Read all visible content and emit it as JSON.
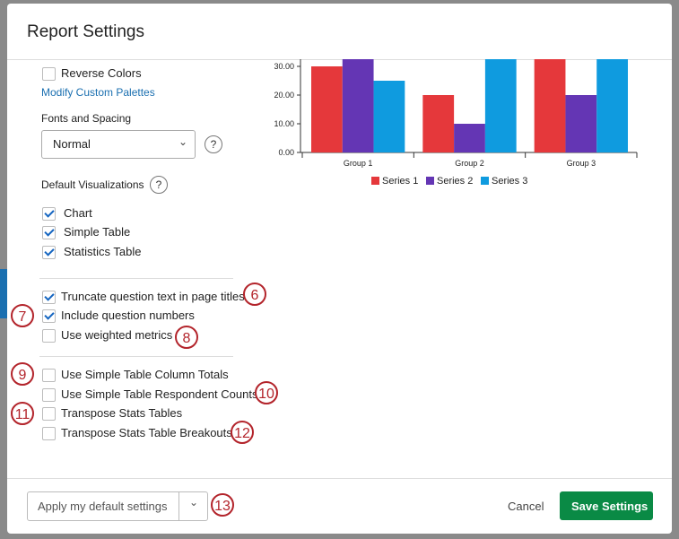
{
  "header": {
    "title": "Report Settings"
  },
  "settings": {
    "reverse_colors": {
      "label": "Reverse Colors",
      "checked": false
    },
    "modify_link": "Modify Custom Palettes",
    "fonts_label": "Fonts and Spacing",
    "fonts_value": "Normal",
    "fonts_help": "?",
    "vis_label": "Default Visualizations",
    "vis_help": "?",
    "visualizations": [
      {
        "label": "Chart",
        "checked": true
      },
      {
        "label": "Simple Table",
        "checked": true
      },
      {
        "label": "Statistics Table",
        "checked": true
      }
    ],
    "options": [
      {
        "label": "Truncate question text in page titles",
        "checked": true,
        "callout": "6"
      },
      {
        "label": "Include question numbers",
        "checked": true,
        "callout": "7"
      },
      {
        "label": "Use weighted metrics",
        "checked": false,
        "callout": "8"
      }
    ],
    "table_options": [
      {
        "label": "Use Simple Table Column Totals",
        "checked": false,
        "callout": "9"
      },
      {
        "label": "Use Simple Table Respondent Counts",
        "checked": false,
        "callout": "10"
      },
      {
        "label": "Transpose Stats Tables",
        "checked": false,
        "callout": "11"
      },
      {
        "label": "Transpose Stats Table Breakouts",
        "checked": false,
        "callout": "12"
      }
    ]
  },
  "chart_data": {
    "type": "bar",
    "categories": [
      "Group 1",
      "Group 2",
      "Group 3"
    ],
    "series": [
      {
        "name": "Series 1",
        "color": "#e5383b",
        "values": [
          30,
          20,
          32.5
        ]
      },
      {
        "name": "Series 2",
        "color": "#6436b4",
        "values": [
          32.5,
          10,
          20
        ]
      },
      {
        "name": "Series 3",
        "color": "#0f9bdf",
        "values": [
          25,
          32.5,
          32.5
        ]
      }
    ],
    "ylim": [
      0,
      32.5
    ],
    "yticks": [
      {
        "value": 0,
        "label": "0.00"
      },
      {
        "value": 10,
        "label": "10.00"
      },
      {
        "value": 20,
        "label": "20.00"
      },
      {
        "value": 30,
        "label": "30.00"
      }
    ]
  },
  "footer": {
    "apply": "Apply my default settings",
    "callout": "13",
    "cancel": "Cancel",
    "save": "Save Settings"
  }
}
